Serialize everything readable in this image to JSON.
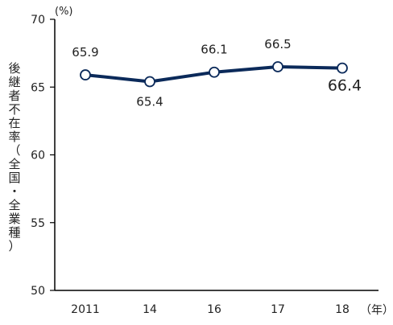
{
  "chart_data": {
    "type": "line",
    "categories": [
      "2011",
      "14",
      "16",
      "17",
      "18"
    ],
    "series": [
      {
        "values": [
          65.9,
          65.4,
          66.1,
          66.5,
          66.4
        ]
      }
    ],
    "data_labels": [
      "65.9",
      "65.4",
      "66.1",
      "66.5",
      "66.4"
    ],
    "ylabel": "後継者不在率（全国・全業種）",
    "y_unit": "(%)",
    "x_unit": "（年）",
    "ylim": [
      50,
      70
    ],
    "yticks": [
      50,
      55,
      60,
      65,
      70
    ],
    "grid": false,
    "line_color": "#0b2a5a",
    "marker_fill": "#ffffff"
  }
}
